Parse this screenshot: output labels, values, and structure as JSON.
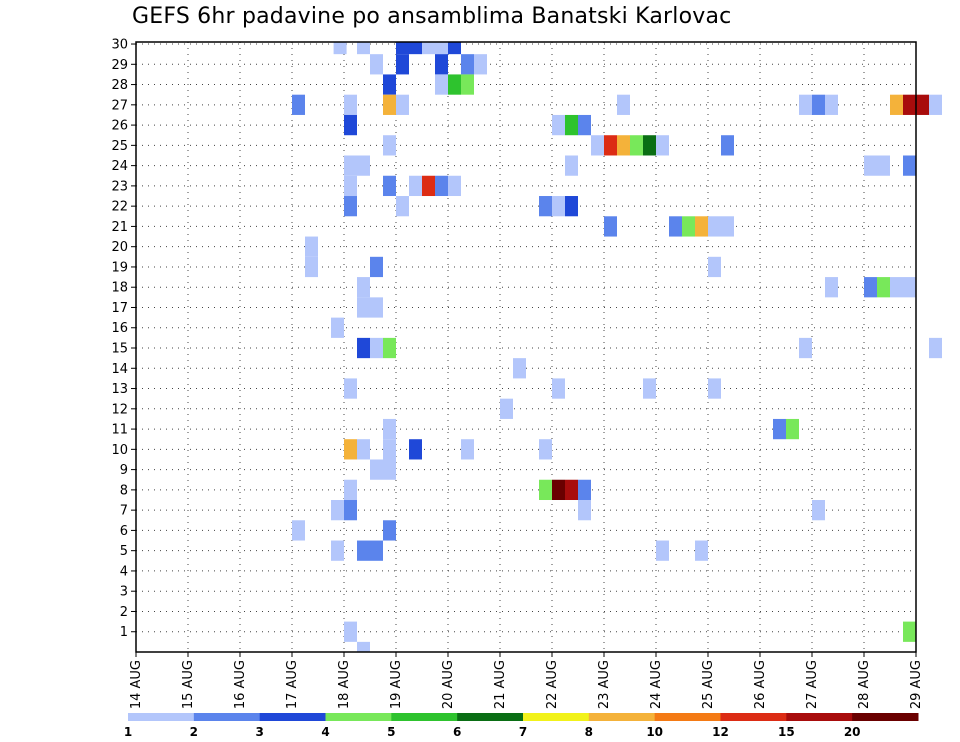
{
  "title": "GEFS 6hr padavine po ansamblima Banatski Karlovac",
  "chart_data": {
    "type": "heatmap",
    "title": "GEFS 6hr padavine po ansamblima Banatski Karlovac",
    "x_tick_labels": [
      "14 AUG",
      "15 AUG",
      "16 AUG",
      "17 AUG",
      "18 AUG",
      "19 AUG",
      "20 AUG",
      "21 AUG",
      "22 AUG",
      "23 AUG",
      "24 AUG",
      "25 AUG",
      "26 AUG",
      "27 AUG",
      "28 AUG",
      "29 AUG"
    ],
    "y_tick_labels": [
      "1",
      "2",
      "3",
      "4",
      "5",
      "6",
      "7",
      "8",
      "9",
      "10",
      "11",
      "12",
      "13",
      "14",
      "15",
      "16",
      "17",
      "18",
      "19",
      "20",
      "21",
      "22",
      "23",
      "24",
      "25",
      "26",
      "27",
      "28",
      "29",
      "30"
    ],
    "x_unit": "day (6-hour steps, 4 per day)",
    "y_unit": "ensemble member",
    "x_range_days": [
      0,
      15
    ],
    "y_range": [
      0,
      30
    ],
    "grid": true,
    "colorbar": {
      "labels": [
        "1",
        "2",
        "3",
        "4",
        "5",
        "6",
        "7",
        "8",
        "10",
        "12",
        "15",
        "20"
      ],
      "colors": [
        "#b3c6fb",
        "#5b84ec",
        "#1f48d8",
        "#78e85a",
        "#2ec32e",
        "#0a6e14",
        "#f2f21a",
        "#f4b23a",
        "#f47a14",
        "#dc2c14",
        "#a80c0c",
        "#6a0000"
      ]
    },
    "cells": [
      {
        "m": 30,
        "d": 3.8,
        "c": 1
      },
      {
        "m": 30,
        "d": 4.25,
        "c": 1
      },
      {
        "m": 30,
        "d": 5.0,
        "c": 3
      },
      {
        "m": 30,
        "d": 5.25,
        "c": 3
      },
      {
        "m": 30,
        "d": 5.5,
        "c": 1
      },
      {
        "m": 30,
        "d": 5.75,
        "c": 1
      },
      {
        "m": 30,
        "d": 6.0,
        "c": 3
      },
      {
        "m": 29,
        "d": 4.5,
        "c": 1
      },
      {
        "m": 29,
        "d": 5.0,
        "c": 3
      },
      {
        "m": 29,
        "d": 5.75,
        "c": 3
      },
      {
        "m": 29,
        "d": 6.25,
        "c": 2
      },
      {
        "m": 29,
        "d": 6.5,
        "c": 1
      },
      {
        "m": 28,
        "d": 4.75,
        "c": 3
      },
      {
        "m": 28,
        "d": 5.75,
        "c": 1
      },
      {
        "m": 28,
        "d": 6.0,
        "c": 5
      },
      {
        "m": 28,
        "d": 6.25,
        "c": 4
      },
      {
        "m": 27,
        "d": 3.0,
        "c": 2
      },
      {
        "m": 27,
        "d": 4.0,
        "c": 1
      },
      {
        "m": 27,
        "d": 4.75,
        "c": 8
      },
      {
        "m": 27,
        "d": 5.0,
        "c": 1
      },
      {
        "m": 27,
        "d": 9.25,
        "c": 1
      },
      {
        "m": 27,
        "d": 12.75,
        "c": 1
      },
      {
        "m": 27,
        "d": 13.0,
        "c": 2
      },
      {
        "m": 27,
        "d": 13.25,
        "c": 1
      },
      {
        "m": 27,
        "d": 14.5,
        "c": 8
      },
      {
        "m": 27,
        "d": 14.75,
        "c": 11
      },
      {
        "m": 27,
        "d": 15.0,
        "c": 11
      },
      {
        "m": 27,
        "d": 15.25,
        "c": 1
      },
      {
        "m": 26,
        "d": 4.0,
        "c": 3
      },
      {
        "m": 26,
        "d": 8.0,
        "c": 1
      },
      {
        "m": 26,
        "d": 8.25,
        "c": 5
      },
      {
        "m": 26,
        "d": 8.5,
        "c": 2
      },
      {
        "m": 25,
        "d": 4.75,
        "c": 1
      },
      {
        "m": 25,
        "d": 8.75,
        "c": 1
      },
      {
        "m": 25,
        "d": 9.0,
        "c": 10
      },
      {
        "m": 25,
        "d": 9.25,
        "c": 8
      },
      {
        "m": 25,
        "d": 9.5,
        "c": 4
      },
      {
        "m": 25,
        "d": 9.75,
        "c": 6
      },
      {
        "m": 25,
        "d": 10.0,
        "c": 1
      },
      {
        "m": 25,
        "d": 11.25,
        "c": 2
      },
      {
        "m": 24,
        "d": 4.0,
        "c": 1
      },
      {
        "m": 24,
        "d": 4.25,
        "c": 1
      },
      {
        "m": 24,
        "d": 8.25,
        "c": 1
      },
      {
        "m": 24,
        "d": 14.0,
        "c": 1
      },
      {
        "m": 24,
        "d": 14.25,
        "c": 1
      },
      {
        "m": 24,
        "d": 14.75,
        "c": 2
      },
      {
        "m": 23,
        "d": 4.0,
        "c": 1
      },
      {
        "m": 23,
        "d": 4.75,
        "c": 2
      },
      {
        "m": 23,
        "d": 5.25,
        "c": 1
      },
      {
        "m": 23,
        "d": 5.5,
        "c": 10
      },
      {
        "m": 23,
        "d": 5.75,
        "c": 2
      },
      {
        "m": 23,
        "d": 6.0,
        "c": 1
      },
      {
        "m": 22,
        "d": 4.0,
        "c": 2
      },
      {
        "m": 22,
        "d": 5.0,
        "c": 1
      },
      {
        "m": 22,
        "d": 7.75,
        "c": 2
      },
      {
        "m": 22,
        "d": 8.0,
        "c": 1
      },
      {
        "m": 22,
        "d": 8.25,
        "c": 3
      },
      {
        "m": 21,
        "d": 9.0,
        "c": 2
      },
      {
        "m": 21,
        "d": 10.25,
        "c": 2
      },
      {
        "m": 21,
        "d": 10.5,
        "c": 4
      },
      {
        "m": 21,
        "d": 10.75,
        "c": 8
      },
      {
        "m": 21,
        "d": 11.0,
        "c": 1
      },
      {
        "m": 21,
        "d": 11.25,
        "c": 1
      },
      {
        "m": 20,
        "d": 3.25,
        "c": 1
      },
      {
        "m": 19,
        "d": 3.25,
        "c": 1
      },
      {
        "m": 19,
        "d": 4.5,
        "c": 2
      },
      {
        "m": 19,
        "d": 11.0,
        "c": 1
      },
      {
        "m": 18,
        "d": 4.25,
        "c": 1
      },
      {
        "m": 18,
        "d": 13.25,
        "c": 1
      },
      {
        "m": 18,
        "d": 14.0,
        "c": 2
      },
      {
        "m": 18,
        "d": 14.25,
        "c": 4
      },
      {
        "m": 18,
        "d": 14.5,
        "c": 1
      },
      {
        "m": 18,
        "d": 14.75,
        "c": 1
      },
      {
        "m": 17,
        "d": 4.25,
        "c": 1
      },
      {
        "m": 17,
        "d": 4.5,
        "c": 1
      },
      {
        "m": 16,
        "d": 3.75,
        "c": 1
      },
      {
        "m": 15,
        "d": 4.25,
        "c": 3
      },
      {
        "m": 15,
        "d": 4.5,
        "c": 1
      },
      {
        "m": 15,
        "d": 4.75,
        "c": 4
      },
      {
        "m": 15,
        "d": 12.75,
        "c": 1
      },
      {
        "m": 15,
        "d": 15.25,
        "c": 1
      },
      {
        "m": 14,
        "d": 7.25,
        "c": 1
      },
      {
        "m": 13,
        "d": 4.0,
        "c": 1
      },
      {
        "m": 13,
        "d": 8.0,
        "c": 1
      },
      {
        "m": 13,
        "d": 9.75,
        "c": 1
      },
      {
        "m": 13,
        "d": 11.0,
        "c": 1
      },
      {
        "m": 12,
        "d": 7.0,
        "c": 1
      },
      {
        "m": 11,
        "d": 4.75,
        "c": 1
      },
      {
        "m": 11,
        "d": 12.25,
        "c": 2
      },
      {
        "m": 11,
        "d": 12.5,
        "c": 4
      },
      {
        "m": 10,
        "d": 4.0,
        "c": 8
      },
      {
        "m": 10,
        "d": 4.25,
        "c": 1
      },
      {
        "m": 10,
        "d": 4.75,
        "c": 1
      },
      {
        "m": 10,
        "d": 5.25,
        "c": 3
      },
      {
        "m": 10,
        "d": 6.25,
        "c": 1
      },
      {
        "m": 10,
        "d": 7.75,
        "c": 1
      },
      {
        "m": 9,
        "d": 4.5,
        "c": 1
      },
      {
        "m": 9,
        "d": 4.75,
        "c": 1
      },
      {
        "m": 8,
        "d": 4.0,
        "c": 1
      },
      {
        "m": 8,
        "d": 7.75,
        "c": 4
      },
      {
        "m": 8,
        "d": 8.0,
        "c": 12
      },
      {
        "m": 8,
        "d": 8.25,
        "c": 11
      },
      {
        "m": 8,
        "d": 8.5,
        "c": 2
      },
      {
        "m": 7,
        "d": 3.75,
        "c": 1
      },
      {
        "m": 7,
        "d": 4.0,
        "c": 2
      },
      {
        "m": 7,
        "d": 8.5,
        "c": 1
      },
      {
        "m": 7,
        "d": 13.0,
        "c": 1
      },
      {
        "m": 6,
        "d": 3.0,
        "c": 1
      },
      {
        "m": 6,
        "d": 4.75,
        "c": 2
      },
      {
        "m": 5,
        "d": 3.75,
        "c": 1
      },
      {
        "m": 5,
        "d": 4.25,
        "c": 2
      },
      {
        "m": 5,
        "d": 4.5,
        "c": 2
      },
      {
        "m": 5,
        "d": 10.0,
        "c": 1
      },
      {
        "m": 5,
        "d": 10.75,
        "c": 1
      },
      {
        "m": 1,
        "d": 4.0,
        "c": 1
      },
      {
        "m": 1,
        "d": 14.75,
        "c": 4
      },
      {
        "m": 0,
        "d": 4.25,
        "c": 1
      }
    ]
  }
}
